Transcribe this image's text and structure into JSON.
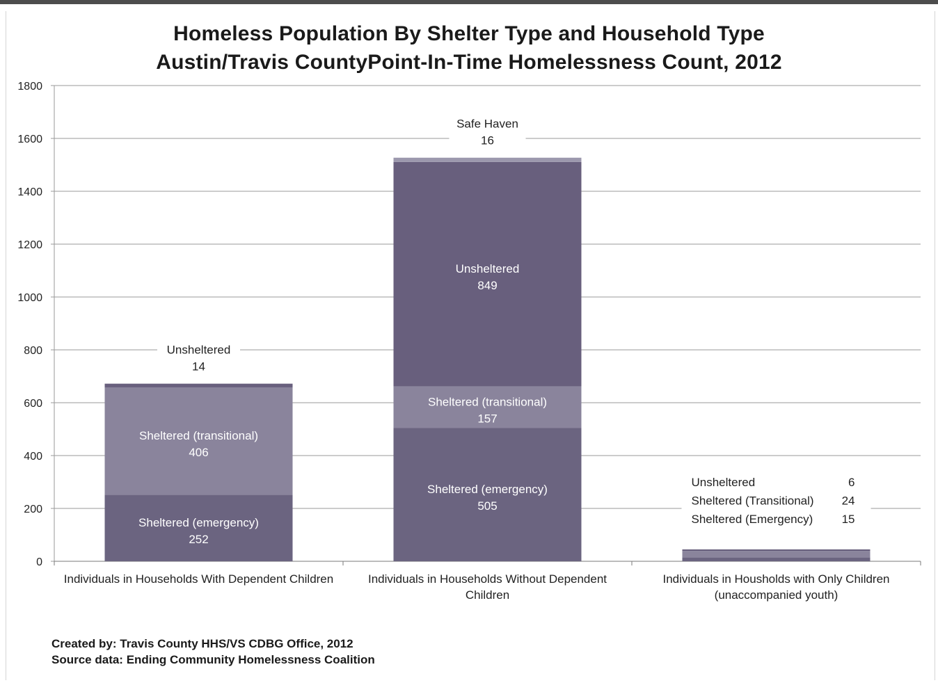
{
  "title_line1": "Homeless Population By Shelter Type and Household Type",
  "title_line2": "Austin/Travis CountyPoint-In-Time Homelessness Count, 2012",
  "footer": {
    "created_by": "Created by: Travis County HHS/VS CDBG Office, 2012",
    "source": "Source data: Ending Community Homelessness Coalition"
  },
  "colors": {
    "emergency": "#6b6480",
    "transitional": "#8a849c",
    "unsheltered": "#685f7d",
    "safe_haven": "#9c98ad",
    "gridline": "#9a9a9a",
    "axis_text": "#222222"
  },
  "chart_data": {
    "type": "bar",
    "stacked": true,
    "categories": [
      [
        "Individuals in Households With Dependent Children"
      ],
      [
        "Individuals in Households Without Dependent",
        "Children"
      ],
      [
        "Individuals in Housholds with Only Children",
        "(unaccompanied youth)"
      ]
    ],
    "ylim": [
      0,
      1800
    ],
    "yticks": [
      "0",
      "200",
      "400",
      "600",
      "800",
      "1000",
      "1200",
      "1400",
      "1600",
      "1800"
    ],
    "grid": true,
    "series": [
      {
        "key": "emergency",
        "values": [
          252,
          505,
          15
        ]
      },
      {
        "key": "transitional",
        "values": [
          406,
          157,
          24
        ]
      },
      {
        "key": "unsheltered",
        "values": [
          14,
          849,
          6
        ]
      },
      {
        "key": "safe_haven",
        "values": [
          0,
          16,
          0
        ]
      }
    ],
    "data_labels": [
      {
        "category": 0,
        "series": "emergency",
        "name": "Sheltered (emergency)",
        "value": "252",
        "placement": "inside"
      },
      {
        "category": 0,
        "series": "transitional",
        "name": "Sheltered (transitional)",
        "value": "406",
        "placement": "inside"
      },
      {
        "category": 0,
        "series": "unsheltered",
        "name": "Unsheltered",
        "value": "14",
        "placement": "above"
      },
      {
        "category": 1,
        "series": "emergency",
        "name": "Sheltered (emergency)",
        "value": "505",
        "placement": "inside"
      },
      {
        "category": 1,
        "series": "transitional",
        "name": "Sheltered (transitional)",
        "value": "157",
        "placement": "inside"
      },
      {
        "category": 1,
        "series": "unsheltered",
        "name": "Unsheltered",
        "value": "849",
        "placement": "inside"
      },
      {
        "category": 1,
        "series": "safe_haven",
        "name": "Safe Haven",
        "value": "16",
        "placement": "above"
      }
    ],
    "side_labels": [
      {
        "name": "Unsheltered",
        "value": "6"
      },
      {
        "name": "Sheltered  (Transitional)",
        "value": "24"
      },
      {
        "name": "Sheltered  (Emergency)",
        "value": "15"
      }
    ]
  }
}
